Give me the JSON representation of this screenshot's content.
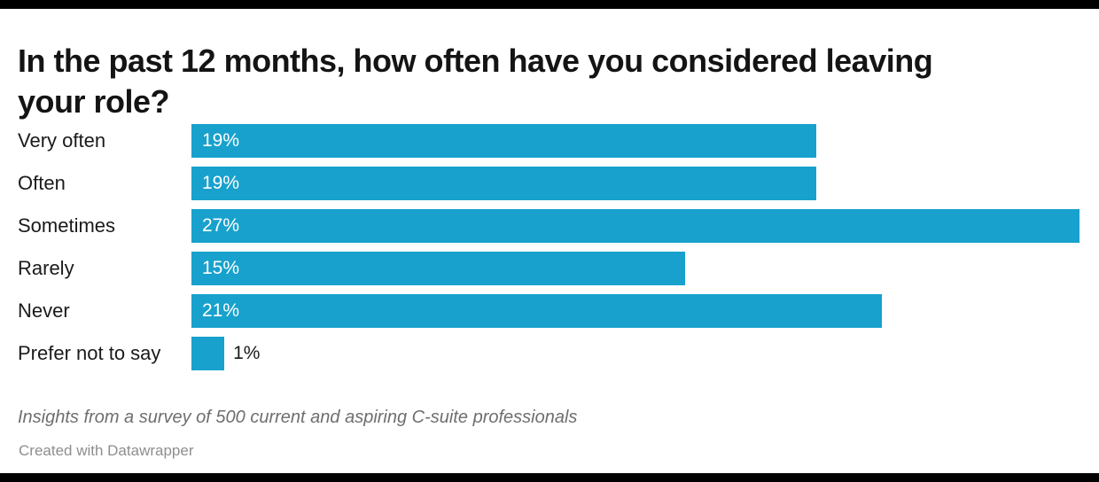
{
  "colors": {
    "frame": "#000000",
    "title": "#141414",
    "text": "#1a1a1a",
    "bar": "#18a1cd",
    "value_inside": "#ffffff",
    "value_outside": "#1a1a1a",
    "notes": "#6e6e6e",
    "attribution": "#8e8e8e"
  },
  "chart_data": {
    "type": "bar",
    "orientation": "horizontal",
    "title": "In the past 12 months, how often have you considered leaving your role?",
    "categories": [
      "Very often",
      "Often",
      "Sometimes",
      "Rarely",
      "Never",
      "Prefer not to say"
    ],
    "values": [
      19,
      19,
      27,
      15,
      21,
      1
    ],
    "value_labels": [
      "19%",
      "19%",
      "27%",
      "15%",
      "21%",
      "1%"
    ],
    "xlim": [
      0,
      27
    ],
    "grid": false,
    "legend": false,
    "bar_color": "#18a1cd",
    "notes": "Insights from a survey of 500 current and aspiring C-suite professionals"
  },
  "footer": {
    "attribution": "Created with Datawrapper"
  }
}
